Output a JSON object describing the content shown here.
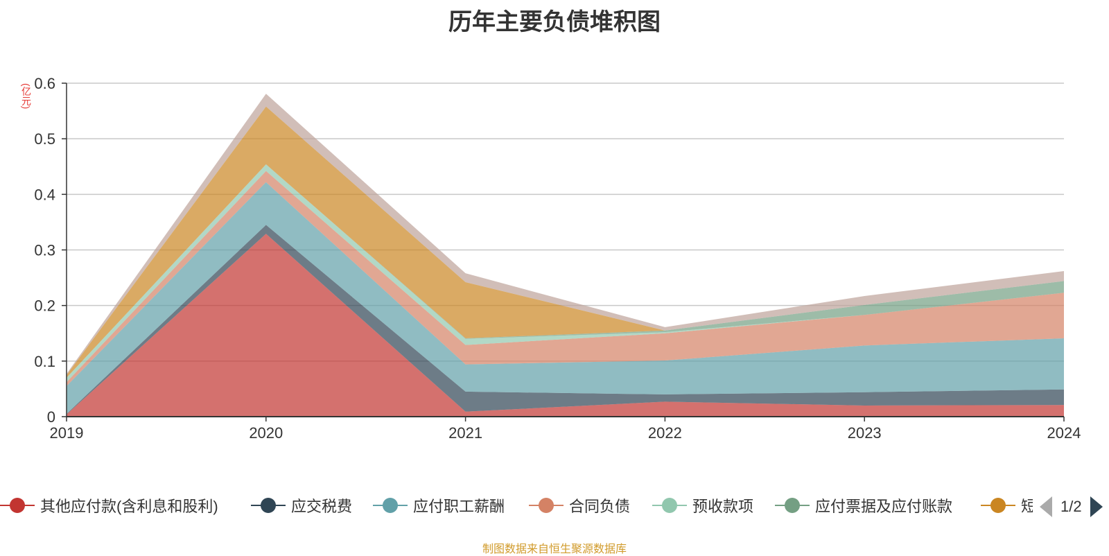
{
  "chart_data": {
    "type": "area",
    "stacked": true,
    "title": "历年主要负债堆积图",
    "ylabel": "(亿元)",
    "xlabel": "",
    "x": [
      "2019",
      "2020",
      "2021",
      "2022",
      "2023",
      "2024"
    ],
    "ylim": [
      0,
      0.6
    ],
    "yticks": [
      "0",
      "0.1",
      "0.2",
      "0.3",
      "0.4",
      "0.5",
      "0.6"
    ],
    "grid": true,
    "legend_position": "bottom",
    "series": [
      {
        "name": "其他应付款(含利息和股利)",
        "color": "#c23531",
        "values": [
          0.004,
          0.329,
          0.009,
          0.027,
          0.02,
          0.021
        ]
      },
      {
        "name": "应交税费",
        "color": "#2f4554",
        "values": [
          0.001,
          0.016,
          0.036,
          0.013,
          0.024,
          0.028
        ]
      },
      {
        "name": "应付职工薪酬",
        "color": "#61a0a8",
        "values": [
          0.05,
          0.077,
          0.049,
          0.061,
          0.084,
          0.092
        ]
      },
      {
        "name": "合同负债",
        "color": "#d48265",
        "values": [
          0.007,
          0.02,
          0.035,
          0.049,
          0.055,
          0.082
        ]
      },
      {
        "name": "预收款项",
        "color": "#91c7ae",
        "values": [
          0.008,
          0.012,
          0.011,
          0.002,
          0.0,
          0.0
        ]
      },
      {
        "name": "应付票据及应付账款",
        "color": "#749f83",
        "values": [
          0.0,
          0.0,
          0.001,
          0.003,
          0.018,
          0.021
        ]
      },
      {
        "name": "短期借款",
        "color": "#ca8622",
        "values": [
          0.005,
          0.104,
          0.101,
          0.0,
          0.0,
          0.0
        ]
      },
      {
        "name": "",
        "color": "#bda29a",
        "values": [
          0.002,
          0.023,
          0.016,
          0.006,
          0.016,
          0.018
        ]
      }
    ]
  },
  "legend": {
    "items": [
      {
        "label": "其他应付款(含利息和股利)",
        "color": "#c23531",
        "icon": "circle-line-icon"
      },
      {
        "label": "应交税费",
        "color": "#2f4554",
        "icon": "circle-line-icon"
      },
      {
        "label": "应付职工薪酬",
        "color": "#61a0a8",
        "icon": "circle-line-icon"
      },
      {
        "label": "合同负债",
        "color": "#d48265",
        "icon": "circle-line-icon"
      },
      {
        "label": "预收款项",
        "color": "#91c7ae",
        "icon": "circle-line-icon"
      },
      {
        "label": "应付票据及应付账款",
        "color": "#749f83",
        "icon": "circle-line-icon"
      },
      {
        "label": "短期借款",
        "color": "#ca8622",
        "icon": "circle-line-icon"
      }
    ],
    "page": "1/2"
  },
  "source_text": "制图数据来自恒生聚源数据库"
}
